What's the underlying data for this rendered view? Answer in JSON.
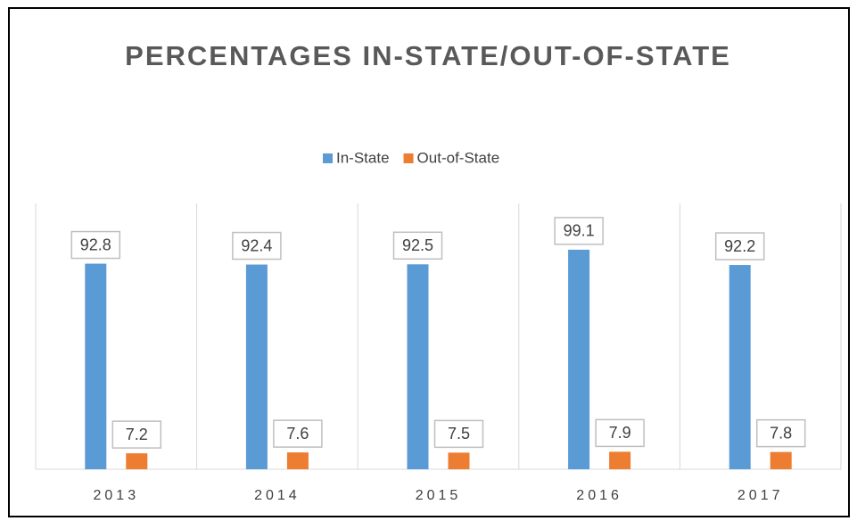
{
  "chart_data": {
    "type": "bar",
    "title": "PERCENTAGES IN-STATE/OUT-OF-STATE",
    "categories": [
      "2013",
      "2014",
      "2015",
      "2016",
      "2017"
    ],
    "series": [
      {
        "name": "In-State",
        "color": "#5b9bd5",
        "values": [
          92.8,
          92.4,
          92.5,
          99.1,
          92.2
        ]
      },
      {
        "name": "Out-of-State",
        "color": "#ed7d31",
        "values": [
          7.2,
          7.6,
          7.5,
          7.9,
          7.8
        ]
      }
    ],
    "ylim": [
      0,
      120
    ],
    "legend": "top"
  }
}
